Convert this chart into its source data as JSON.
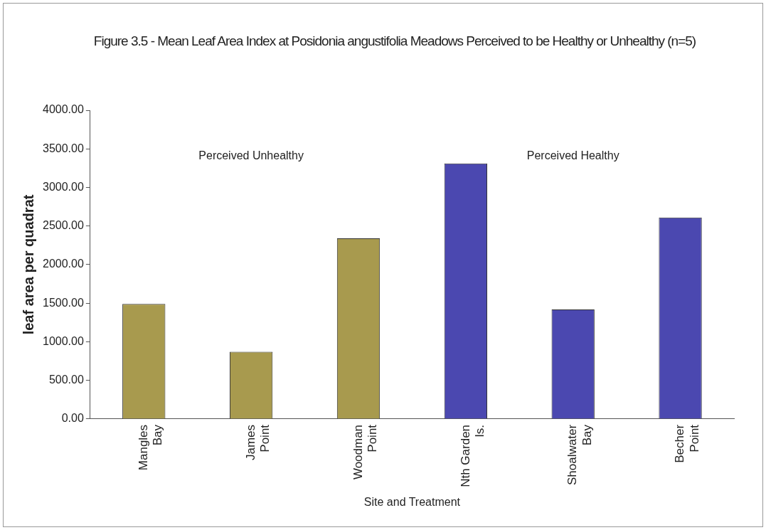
{
  "chart_data": {
    "type": "bar",
    "title": "Figure 3.5 - Mean Leaf Area Index at Posidonia angustifolia Meadows Perceived to be Healthy or Unhealthy (n=5)",
    "xlabel": "Site and Treatment",
    "ylabel": "leaf area per quadrat",
    "categories": [
      "Mangles Bay",
      "James Point",
      "Woodman Point",
      "Nth Garden Is.",
      "Shoalwater Bay",
      "Becher Point"
    ],
    "values": [
      1490,
      870,
      2340,
      3310,
      1420,
      2610
    ],
    "colors": [
      "#a89a4e",
      "#a89a4e",
      "#a89a4e",
      "#4b48b0",
      "#4b48b0",
      "#4b48b0"
    ],
    "ylim": [
      0,
      4000
    ],
    "yticks": [
      {
        "value": 0,
        "label": "0.00"
      },
      {
        "value": 500,
        "label": "500.00"
      },
      {
        "value": 1000,
        "label": "1000.00"
      },
      {
        "value": 1500,
        "label": "1500.00"
      },
      {
        "value": 2000,
        "label": "2000.00"
      },
      {
        "value": 2500,
        "label": "2500.00"
      },
      {
        "value": 3000,
        "label": "3000.00"
      },
      {
        "value": 3500,
        "label": "3500.00"
      },
      {
        "value": 4000,
        "label": "4000.00"
      }
    ],
    "annotations": [
      "Perceived Unhealthy",
      "Perceived Healthy"
    ],
    "grid": false,
    "legend": false
  }
}
